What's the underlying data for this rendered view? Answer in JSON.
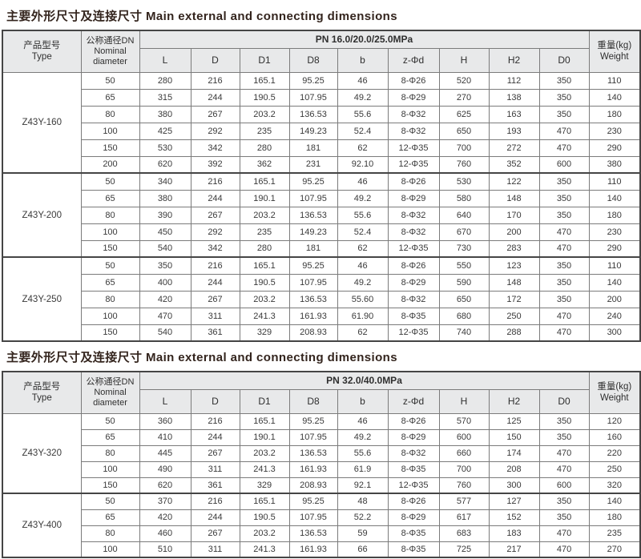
{
  "palette": {
    "title_color": "#33241d",
    "header_bg": "#e8e9ea",
    "border_dark": "#454545",
    "border_light": "#7b7b7b"
  },
  "sections": [
    {
      "title": "主要外形尺寸及连接尺寸 Main external and connecting dimensions",
      "table": {
        "col_type_lines": [
          "产品型号",
          "Type"
        ],
        "col_dn_lines": [
          "公称通径DN",
          "Nominal",
          "diameter"
        ],
        "pn_label": "PN 16.0/20.0/25.0MPa",
        "weight_lines": [
          "重量(kg)",
          "Weight"
        ],
        "dim_headers": [
          "L",
          "D",
          "D1",
          "D8",
          "b",
          "z-Φd",
          "H",
          "H2",
          "D0"
        ],
        "groups": [
          {
            "type": "Z43Y-160",
            "rows": [
              [
                "50",
                "280",
                "216",
                "165.1",
                "95.25",
                "46",
                "8-Φ26",
                "520",
                "112",
                "350",
                "110"
              ],
              [
                "65",
                "315",
                "244",
                "190.5",
                "107.95",
                "49.2",
                "8-Φ29",
                "270",
                "138",
                "350",
                "140"
              ],
              [
                "80",
                "380",
                "267",
                "203.2",
                "136.53",
                "55.6",
                "8-Φ32",
                "625",
                "163",
                "350",
                "180"
              ],
              [
                "100",
                "425",
                "292",
                "235",
                "149.23",
                "52.4",
                "8-Φ32",
                "650",
                "193",
                "470",
                "230"
              ],
              [
                "150",
                "530",
                "342",
                "280",
                "181",
                "62",
                "12-Φ35",
                "700",
                "272",
                "470",
                "290"
              ],
              [
                "200",
                "620",
                "392",
                "362",
                "231",
                "92.10",
                "12-Φ35",
                "760",
                "352",
                "600",
                "380"
              ]
            ]
          },
          {
            "type": "Z43Y-200",
            "rows": [
              [
                "50",
                "340",
                "216",
                "165.1",
                "95.25",
                "46",
                "8-Φ26",
                "530",
                "122",
                "350",
                "110"
              ],
              [
                "65",
                "380",
                "244",
                "190.1",
                "107.95",
                "49.2",
                "8-Φ29",
                "580",
                "148",
                "350",
                "140"
              ],
              [
                "80",
                "390",
                "267",
                "203.2",
                "136.53",
                "55.6",
                "8-Φ32",
                "640",
                "170",
                "350",
                "180"
              ],
              [
                "100",
                "450",
                "292",
                "235",
                "149.23",
                "52.4",
                "8-Φ32",
                "670",
                "200",
                "470",
                "230"
              ],
              [
                "150",
                "540",
                "342",
                "280",
                "181",
                "62",
                "12-Φ35",
                "730",
                "283",
                "470",
                "290"
              ]
            ]
          },
          {
            "type": "Z43Y-250",
            "rows": [
              [
                "50",
                "350",
                "216",
                "165.1",
                "95.25",
                "46",
                "8-Φ26",
                "550",
                "123",
                "350",
                "110"
              ],
              [
                "65",
                "400",
                "244",
                "190.5",
                "107.95",
                "49.2",
                "8-Φ29",
                "590",
                "148",
                "350",
                "140"
              ],
              [
                "80",
                "420",
                "267",
                "203.2",
                "136.53",
                "55.60",
                "8-Φ32",
                "650",
                "172",
                "350",
                "200"
              ],
              [
                "100",
                "470",
                "311",
                "241.3",
                "161.93",
                "61.90",
                "8-Φ35",
                "680",
                "250",
                "470",
                "240"
              ],
              [
                "150",
                "540",
                "361",
                "329",
                "208.93",
                "62",
                "12-Φ35",
                "740",
                "288",
                "470",
                "300"
              ]
            ]
          }
        ]
      }
    },
    {
      "title": "主要外形尺寸及连接尺寸 Main external and connecting dimensions",
      "table": {
        "col_type_lines": [
          "产品型号",
          "Type"
        ],
        "col_dn_lines": [
          "公称通径DN",
          "Nominal",
          "diameter"
        ],
        "pn_label": "PN 32.0/40.0MPa",
        "weight_lines": [
          "重量(kg)",
          "Weight"
        ],
        "dim_headers": [
          "L",
          "D",
          "D1",
          "D8",
          "b",
          "z-Φd",
          "H",
          "H2",
          "D0"
        ],
        "groups": [
          {
            "type": "Z43Y-320",
            "rows": [
              [
                "50",
                "360",
                "216",
                "165.1",
                "95.25",
                "46",
                "8-Φ26",
                "570",
                "125",
                "350",
                "120"
              ],
              [
                "65",
                "410",
                "244",
                "190.1",
                "107.95",
                "49.2",
                "8-Φ29",
                "600",
                "150",
                "350",
                "160"
              ],
              [
                "80",
                "445",
                "267",
                "203.2",
                "136.53",
                "55.6",
                "8-Φ32",
                "660",
                "174",
                "470",
                "220"
              ],
              [
                "100",
                "490",
                "311",
                "241.3",
                "161.93",
                "61.9",
                "8-Φ35",
                "700",
                "208",
                "470",
                "250"
              ],
              [
                "150",
                "620",
                "361",
                "329",
                "208.93",
                "92.1",
                "12-Φ35",
                "760",
                "300",
                "600",
                "320"
              ]
            ]
          },
          {
            "type": "Z43Y-400",
            "rows": [
              [
                "50",
                "370",
                "216",
                "165.1",
                "95.25",
                "48",
                "8-Φ26",
                "577",
                "127",
                "350",
                "140"
              ],
              [
                "65",
                "420",
                "244",
                "190.5",
                "107.95",
                "52.2",
                "8-Φ29",
                "617",
                "152",
                "350",
                "180"
              ],
              [
                "80",
                "460",
                "267",
                "203.2",
                "136.53",
                "59",
                "8-Φ35",
                "683",
                "183",
                "470",
                "235"
              ],
              [
                "100",
                "510",
                "311",
                "241.3",
                "161.93",
                "66",
                "8-Φ35",
                "725",
                "217",
                "470",
                "270"
              ]
            ]
          }
        ]
      }
    }
  ]
}
